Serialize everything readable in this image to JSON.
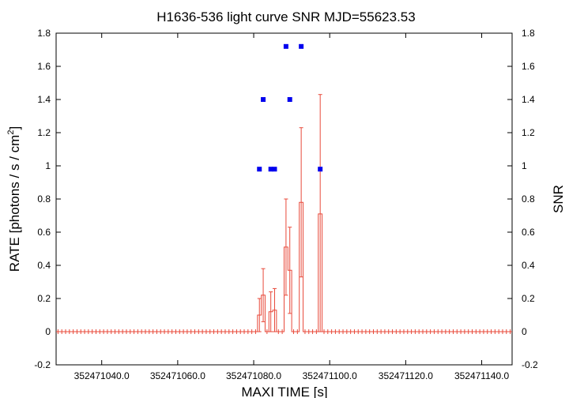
{
  "chart_data": {
    "type": "scatter",
    "title": "H1636-536 light curve  SNR MJD=55623.53",
    "xlabel": "MAXI TIME [s]",
    "ylabel_left": "RATE [photons / s / cm",
    "ylabel_left_sup": "2",
    "ylabel_left_end": "]",
    "ylabel_right": "SNR",
    "xlim": [
      352471028,
      352471148
    ],
    "ylim": [
      -0.2,
      1.8
    ],
    "x_tick_values": [
      352471040,
      352471060,
      352471080,
      352471100,
      352471120,
      352471140
    ],
    "x_tick_labels": [
      "352471040.0",
      "352471060.0",
      "352471080.0",
      "352471100.0",
      "352471120.0",
      "352471140.0"
    ],
    "y_tick_values": [
      -0.2,
      0,
      0.2,
      0.4,
      0.6,
      0.8,
      1,
      1.2,
      1.4,
      1.6,
      1.8
    ],
    "y_tick_labels": [
      "-0.2",
      "0",
      "0.2",
      "0.4",
      "0.6",
      "0.8",
      "1",
      "1.2",
      "1.4",
      "1.6",
      "1.8"
    ],
    "grid": false,
    "colors": {
      "rate": "#e8493a",
      "snr": "#0000ee",
      "axes": "#000000"
    },
    "series": [
      {
        "name": "RATE",
        "style": "histogram-step-with-errorbars",
        "bin_width": 1,
        "x_start": 352471028,
        "nonzero_bins": [
          {
            "x": 352471081,
            "y": 0.1,
            "err": 0.1
          },
          {
            "x": 352471082,
            "y": 0.22,
            "err": 0.16
          },
          {
            "x": 352471084,
            "y": 0.12,
            "err": 0.12
          },
          {
            "x": 352471085,
            "y": 0.13,
            "err": 0.13
          },
          {
            "x": 352471088,
            "y": 0.51,
            "err": 0.29
          },
          {
            "x": 352471089,
            "y": 0.37,
            "err": 0.26
          },
          {
            "x": 352471092,
            "y": 0.78,
            "err": 0.45
          },
          {
            "x": 352471097,
            "y": 0.71,
            "err": 0.72
          }
        ]
      },
      {
        "name": "SNR",
        "style": "points",
        "points": [
          {
            "x": 352471081.5,
            "y": 0.98
          },
          {
            "x": 352471082.5,
            "y": 1.4
          },
          {
            "x": 352471084.5,
            "y": 0.98
          },
          {
            "x": 352471085.5,
            "y": 0.98
          },
          {
            "x": 352471088.5,
            "y": 1.72
          },
          {
            "x": 352471089.5,
            "y": 1.4
          },
          {
            "x": 352471092.5,
            "y": 1.72
          },
          {
            "x": 352471097.5,
            "y": 0.98
          }
        ]
      }
    ]
  }
}
